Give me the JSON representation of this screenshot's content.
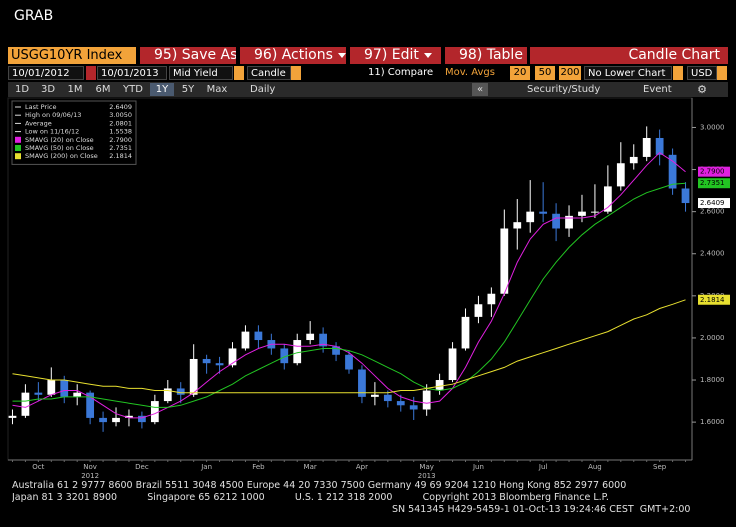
{
  "app": {
    "title": "GRAB",
    "security": "USGG10YR Index",
    "buttons": [
      "95) Save As",
      "96) Actions",
      "97) Edit",
      "98) Table"
    ],
    "view": "Candle Chart",
    "start_date": "10/01/2012",
    "end_date": "10/01/2013",
    "field": "Mid Yield",
    "style": "Candle",
    "compare": "11) Compare",
    "mov_avgs_label": "Mov. Avgs",
    "mov_avgs": [
      "20",
      "50",
      "200"
    ],
    "lower_chart": "No Lower Chart",
    "currency": "USD",
    "periods": [
      "1D",
      "3D",
      "1M",
      "6M",
      "YTD",
      "1Y",
      "5Y",
      "Max"
    ],
    "active_period": "1Y",
    "frequency": "Daily",
    "collapse": "«",
    "security_study": "Security/Study",
    "event": "Event"
  },
  "chart_data": {
    "type": "candlestick",
    "categories": [
      null,
      null,
      "Oct",
      null,
      null,
      null,
      "Nov",
      null,
      null,
      null,
      "Dec",
      null,
      null,
      null,
      null,
      "Jan",
      null,
      null,
      null,
      "Feb",
      null,
      null,
      null,
      "Mar",
      null,
      null,
      null,
      "Apr",
      null,
      null,
      null,
      null,
      "May",
      null,
      null,
      null,
      "Jun",
      null,
      null,
      null,
      null,
      "Jul",
      null,
      null,
      null,
      "Aug",
      null,
      null,
      null,
      null,
      "Sep",
      null,
      null
    ],
    "year_labels": [
      "2012",
      "2013"
    ],
    "ylim": [
      1.42,
      3.14
    ],
    "yticks": [
      {
        "value": 1.6,
        "label": "1.6000"
      },
      {
        "value": 1.8,
        "label": "1.8000"
      },
      {
        "value": 2.0,
        "label": "2.0000"
      },
      {
        "value": 2.2,
        "label": "2.2000"
      },
      {
        "value": 2.4,
        "label": "2.4000"
      },
      {
        "value": 2.6,
        "label": "2.6000"
      },
      {
        "value": 2.8,
        "label": "2.8000"
      },
      {
        "value": 3.0,
        "label": "3.0000"
      }
    ],
    "legend": "upper left",
    "stats": [
      {
        "label": "Last Price",
        "value": "2.6409"
      },
      {
        "label": "High on 09/06/13",
        "value": "3.0050"
      },
      {
        "label": "Average",
        "value": "2.0801"
      },
      {
        "label": "Low on 11/16/12",
        "value": "1.5538"
      }
    ],
    "candles": {
      "up_color": "#ffffff",
      "down_color": "#3b78d8",
      "last_label": "2.6409",
      "open": [
        1.62,
        1.63,
        1.74,
        1.73,
        1.8,
        1.72,
        1.74,
        1.62,
        1.6,
        1.62,
        1.63,
        1.6,
        1.7,
        1.76,
        1.73,
        1.9,
        1.88,
        1.87,
        1.95,
        2.03,
        1.99,
        1.95,
        1.88,
        1.99,
        2.02,
        1.96,
        1.92,
        1.85,
        1.72,
        1.73,
        1.7,
        1.68,
        1.66,
        1.75,
        1.8,
        1.95,
        2.1,
        2.16,
        2.21,
        2.52,
        2.55,
        2.6,
        2.59,
        2.52,
        2.58,
        2.6,
        2.6,
        2.72,
        2.83,
        2.86,
        2.95,
        2.87,
        2.71
      ],
      "high": [
        1.66,
        1.78,
        1.79,
        1.86,
        1.82,
        1.78,
        1.75,
        1.65,
        1.67,
        1.66,
        1.65,
        1.73,
        1.8,
        1.79,
        1.97,
        1.92,
        1.91,
        1.98,
        2.06,
        2.06,
        2.02,
        1.97,
        2.02,
        2.08,
        2.05,
        1.98,
        1.94,
        1.87,
        1.79,
        1.75,
        1.73,
        1.72,
        1.78,
        1.83,
        1.98,
        2.14,
        2.2,
        2.24,
        2.61,
        2.66,
        2.75,
        2.74,
        2.64,
        2.63,
        2.68,
        2.73,
        2.82,
        2.93,
        2.92,
        3.005,
        2.99,
        2.9,
        2.74
      ],
      "low": [
        1.59,
        1.62,
        1.7,
        1.72,
        1.69,
        1.68,
        1.59,
        1.5538,
        1.58,
        1.58,
        1.57,
        1.59,
        1.69,
        1.69,
        1.72,
        1.83,
        1.83,
        1.86,
        1.94,
        1.95,
        1.92,
        1.85,
        1.87,
        1.97,
        1.93,
        1.89,
        1.83,
        1.69,
        1.68,
        1.67,
        1.65,
        1.61,
        1.63,
        1.73,
        1.79,
        1.94,
        2.07,
        2.1,
        2.2,
        2.42,
        2.5,
        2.55,
        2.46,
        2.48,
        2.55,
        2.57,
        2.59,
        2.7,
        2.8,
        2.84,
        2.82,
        2.68,
        2.6
      ],
      "close": [
        1.63,
        1.74,
        1.73,
        1.8,
        1.72,
        1.74,
        1.62,
        1.6,
        1.62,
        1.63,
        1.6,
        1.7,
        1.76,
        1.73,
        1.9,
        1.88,
        1.87,
        1.95,
        2.03,
        1.99,
        1.95,
        1.88,
        1.99,
        2.02,
        1.96,
        1.92,
        1.85,
        1.72,
        1.73,
        1.7,
        1.68,
        1.66,
        1.75,
        1.8,
        1.95,
        2.1,
        2.16,
        2.21,
        2.52,
        2.55,
        2.6,
        2.59,
        2.52,
        2.58,
        2.6,
        2.6,
        2.72,
        2.83,
        2.86,
        2.95,
        2.87,
        2.71,
        2.6409
      ]
    },
    "series": [
      {
        "name": "SMAVG (20) on Close",
        "color": "#e020e0",
        "last_label": "2.7900",
        "values": [
          1.68,
          1.67,
          1.7,
          1.73,
          1.75,
          1.75,
          1.72,
          1.68,
          1.64,
          1.62,
          1.62,
          1.64,
          1.67,
          1.7,
          1.74,
          1.79,
          1.84,
          1.88,
          1.92,
          1.95,
          1.97,
          1.97,
          1.96,
          1.96,
          1.97,
          1.96,
          1.93,
          1.88,
          1.82,
          1.76,
          1.72,
          1.7,
          1.69,
          1.7,
          1.76,
          1.86,
          1.98,
          2.08,
          2.21,
          2.36,
          2.47,
          2.54,
          2.57,
          2.57,
          2.57,
          2.58,
          2.62,
          2.68,
          2.75,
          2.82,
          2.88,
          2.84,
          2.79
        ]
      },
      {
        "name": "SMAVG (50) on Close",
        "color": "#22c422",
        "last_label": "2.7351",
        "values": [
          1.7,
          1.7,
          1.71,
          1.71,
          1.72,
          1.72,
          1.72,
          1.71,
          1.7,
          1.69,
          1.68,
          1.67,
          1.67,
          1.68,
          1.7,
          1.72,
          1.75,
          1.78,
          1.82,
          1.85,
          1.88,
          1.91,
          1.93,
          1.94,
          1.95,
          1.95,
          1.94,
          1.92,
          1.89,
          1.86,
          1.83,
          1.79,
          1.76,
          1.75,
          1.76,
          1.79,
          1.84,
          1.9,
          1.98,
          2.08,
          2.18,
          2.28,
          2.36,
          2.43,
          2.49,
          2.54,
          2.58,
          2.62,
          2.66,
          2.69,
          2.71,
          2.73,
          2.7351
        ]
      },
      {
        "name": "SMAVG (200) on Close",
        "color": "#e8e030",
        "last_label": "2.1814",
        "values": [
          1.83,
          1.82,
          1.81,
          1.8,
          1.8,
          1.79,
          1.78,
          1.77,
          1.77,
          1.76,
          1.76,
          1.75,
          1.75,
          1.74,
          1.74,
          1.74,
          1.74,
          1.74,
          1.74,
          1.74,
          1.74,
          1.74,
          1.74,
          1.74,
          1.74,
          1.74,
          1.74,
          1.74,
          1.74,
          1.74,
          1.75,
          1.75,
          1.76,
          1.77,
          1.78,
          1.8,
          1.82,
          1.84,
          1.86,
          1.89,
          1.91,
          1.93,
          1.95,
          1.97,
          1.99,
          2.01,
          2.03,
          2.06,
          2.09,
          2.11,
          2.14,
          2.16,
          2.1814
        ]
      }
    ]
  },
  "footer": {
    "lines": [
      "Australia 61 2 9777 8600 Brazil 5511 3048 4500 Europe 44 20 7330 7500 Germany 49 69 9204 1210 Hong Kong 852 2977 6000",
      "Japan 81 3 3201 8900          Singapore 65 6212 1000          U.S. 1 212 318 2000          Copyright 2013 Bloomberg Finance L.P.",
      "SN 541345 H429-5459-1 01-Oct-13 19:24:46 CEST  GMT+2:00"
    ]
  }
}
